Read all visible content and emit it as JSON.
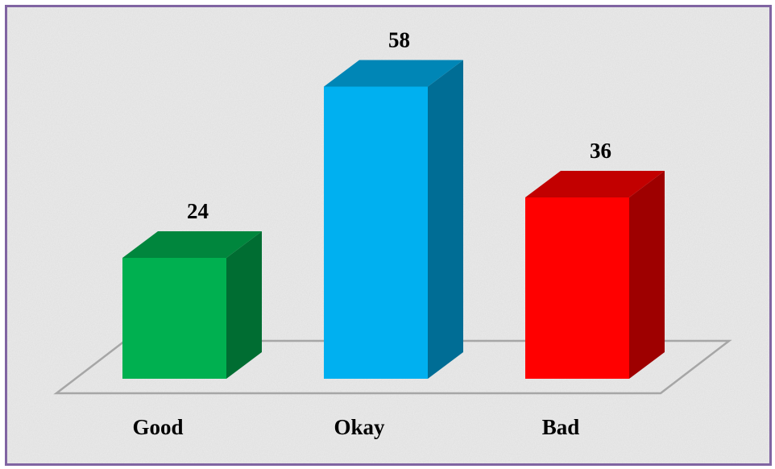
{
  "chart_data": {
    "type": "bar3d",
    "categories": [
      "Good",
      "Okay",
      "Bad"
    ],
    "values": [
      24,
      58,
      36
    ],
    "colors": [
      "#00b050",
      "#00b0f0",
      "#ff0000"
    ]
  }
}
